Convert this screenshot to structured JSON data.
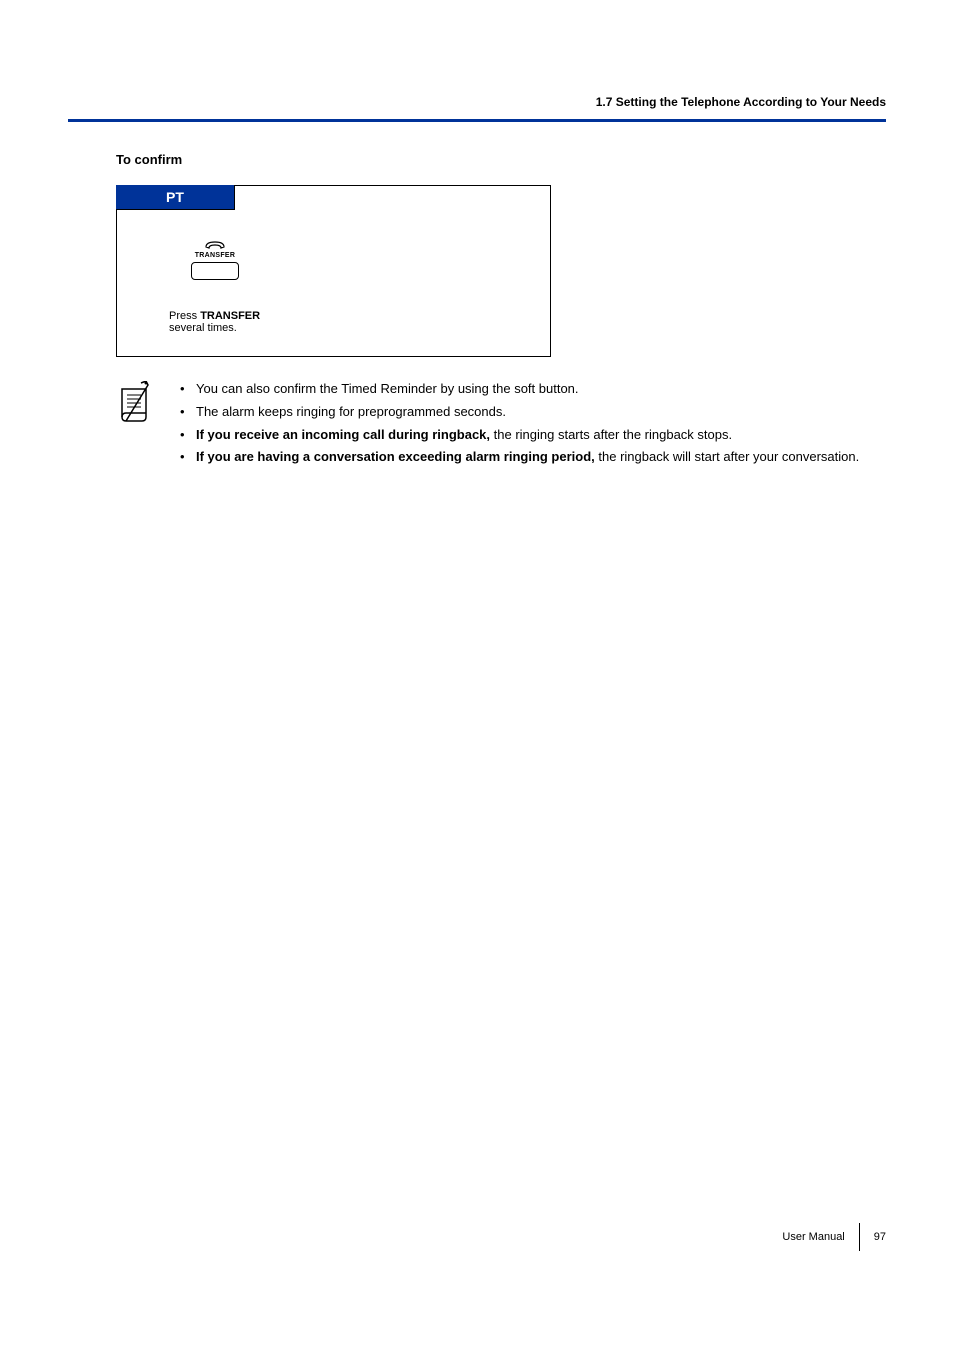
{
  "header": {
    "section_title": "1.7 Setting the Telephone According to Your Needs",
    "divider_color": "#003399"
  },
  "section": {
    "subtitle": "To confirm"
  },
  "instruction_box": {
    "tab_label": "PT",
    "tab_bg_color": "#003399",
    "tab_text_color": "#ffffff",
    "button_label": "TRANSFER",
    "instruction_prefix": "Press ",
    "instruction_bold": "TRANSFER",
    "instruction_suffix": "several times."
  },
  "notes": [
    {
      "segments": [
        {
          "text": "You can also confirm the Timed Reminder by using the soft button.",
          "bold": false
        }
      ]
    },
    {
      "segments": [
        {
          "text": "The alarm keeps ringing for preprogrammed seconds.",
          "bold": false
        }
      ]
    },
    {
      "segments": [
        {
          "text": "If you receive an incoming call during ringback,",
          "bold": true
        },
        {
          "text": " the ringing starts after the ringback stops.",
          "bold": false
        }
      ]
    },
    {
      "segments": [
        {
          "text": "If you are having a conversation exceeding alarm ringing period,",
          "bold": true
        },
        {
          "text": " the ringback will start after your conversation.",
          "bold": false
        }
      ]
    }
  ],
  "footer": {
    "label": "User Manual",
    "page_number": "97"
  }
}
